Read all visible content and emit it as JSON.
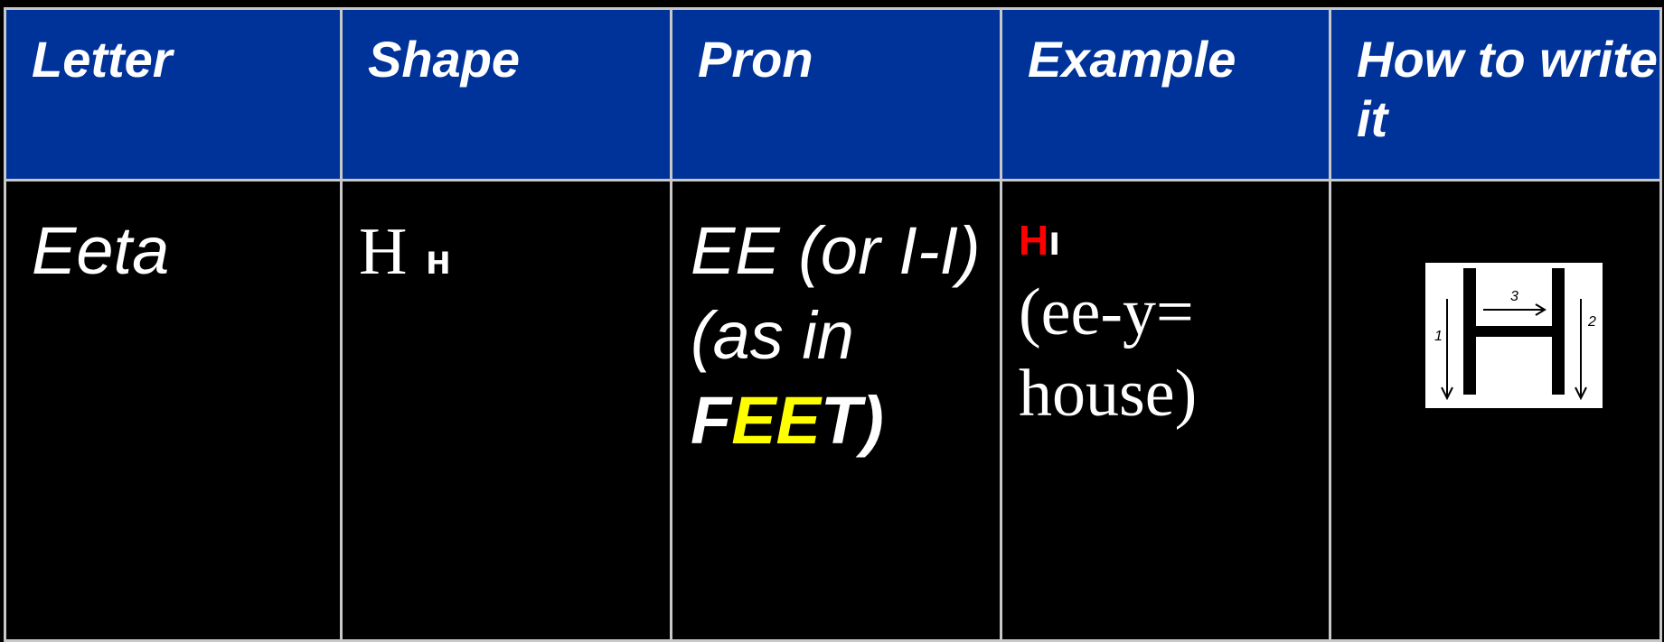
{
  "table": {
    "header": [
      "Letter",
      "Shape",
      "Pron",
      "Example",
      "How  to write it"
    ],
    "rows": [
      {
        "letter": "Eeta",
        "shape": {
          "capital": "H",
          "small": "н"
        },
        "pron": {
          "line1": "EE (or I-I)",
          "line2": "(as in",
          "line3": [
            "F",
            "EE",
            "T)"
          ]
        },
        "example": {
          "word_first": "H",
          "word_rest": "ı",
          "gloss": "(ee-y= house)"
        },
        "stroke_order": [
          "1",
          "2",
          "3"
        ]
      }
    ]
  }
}
